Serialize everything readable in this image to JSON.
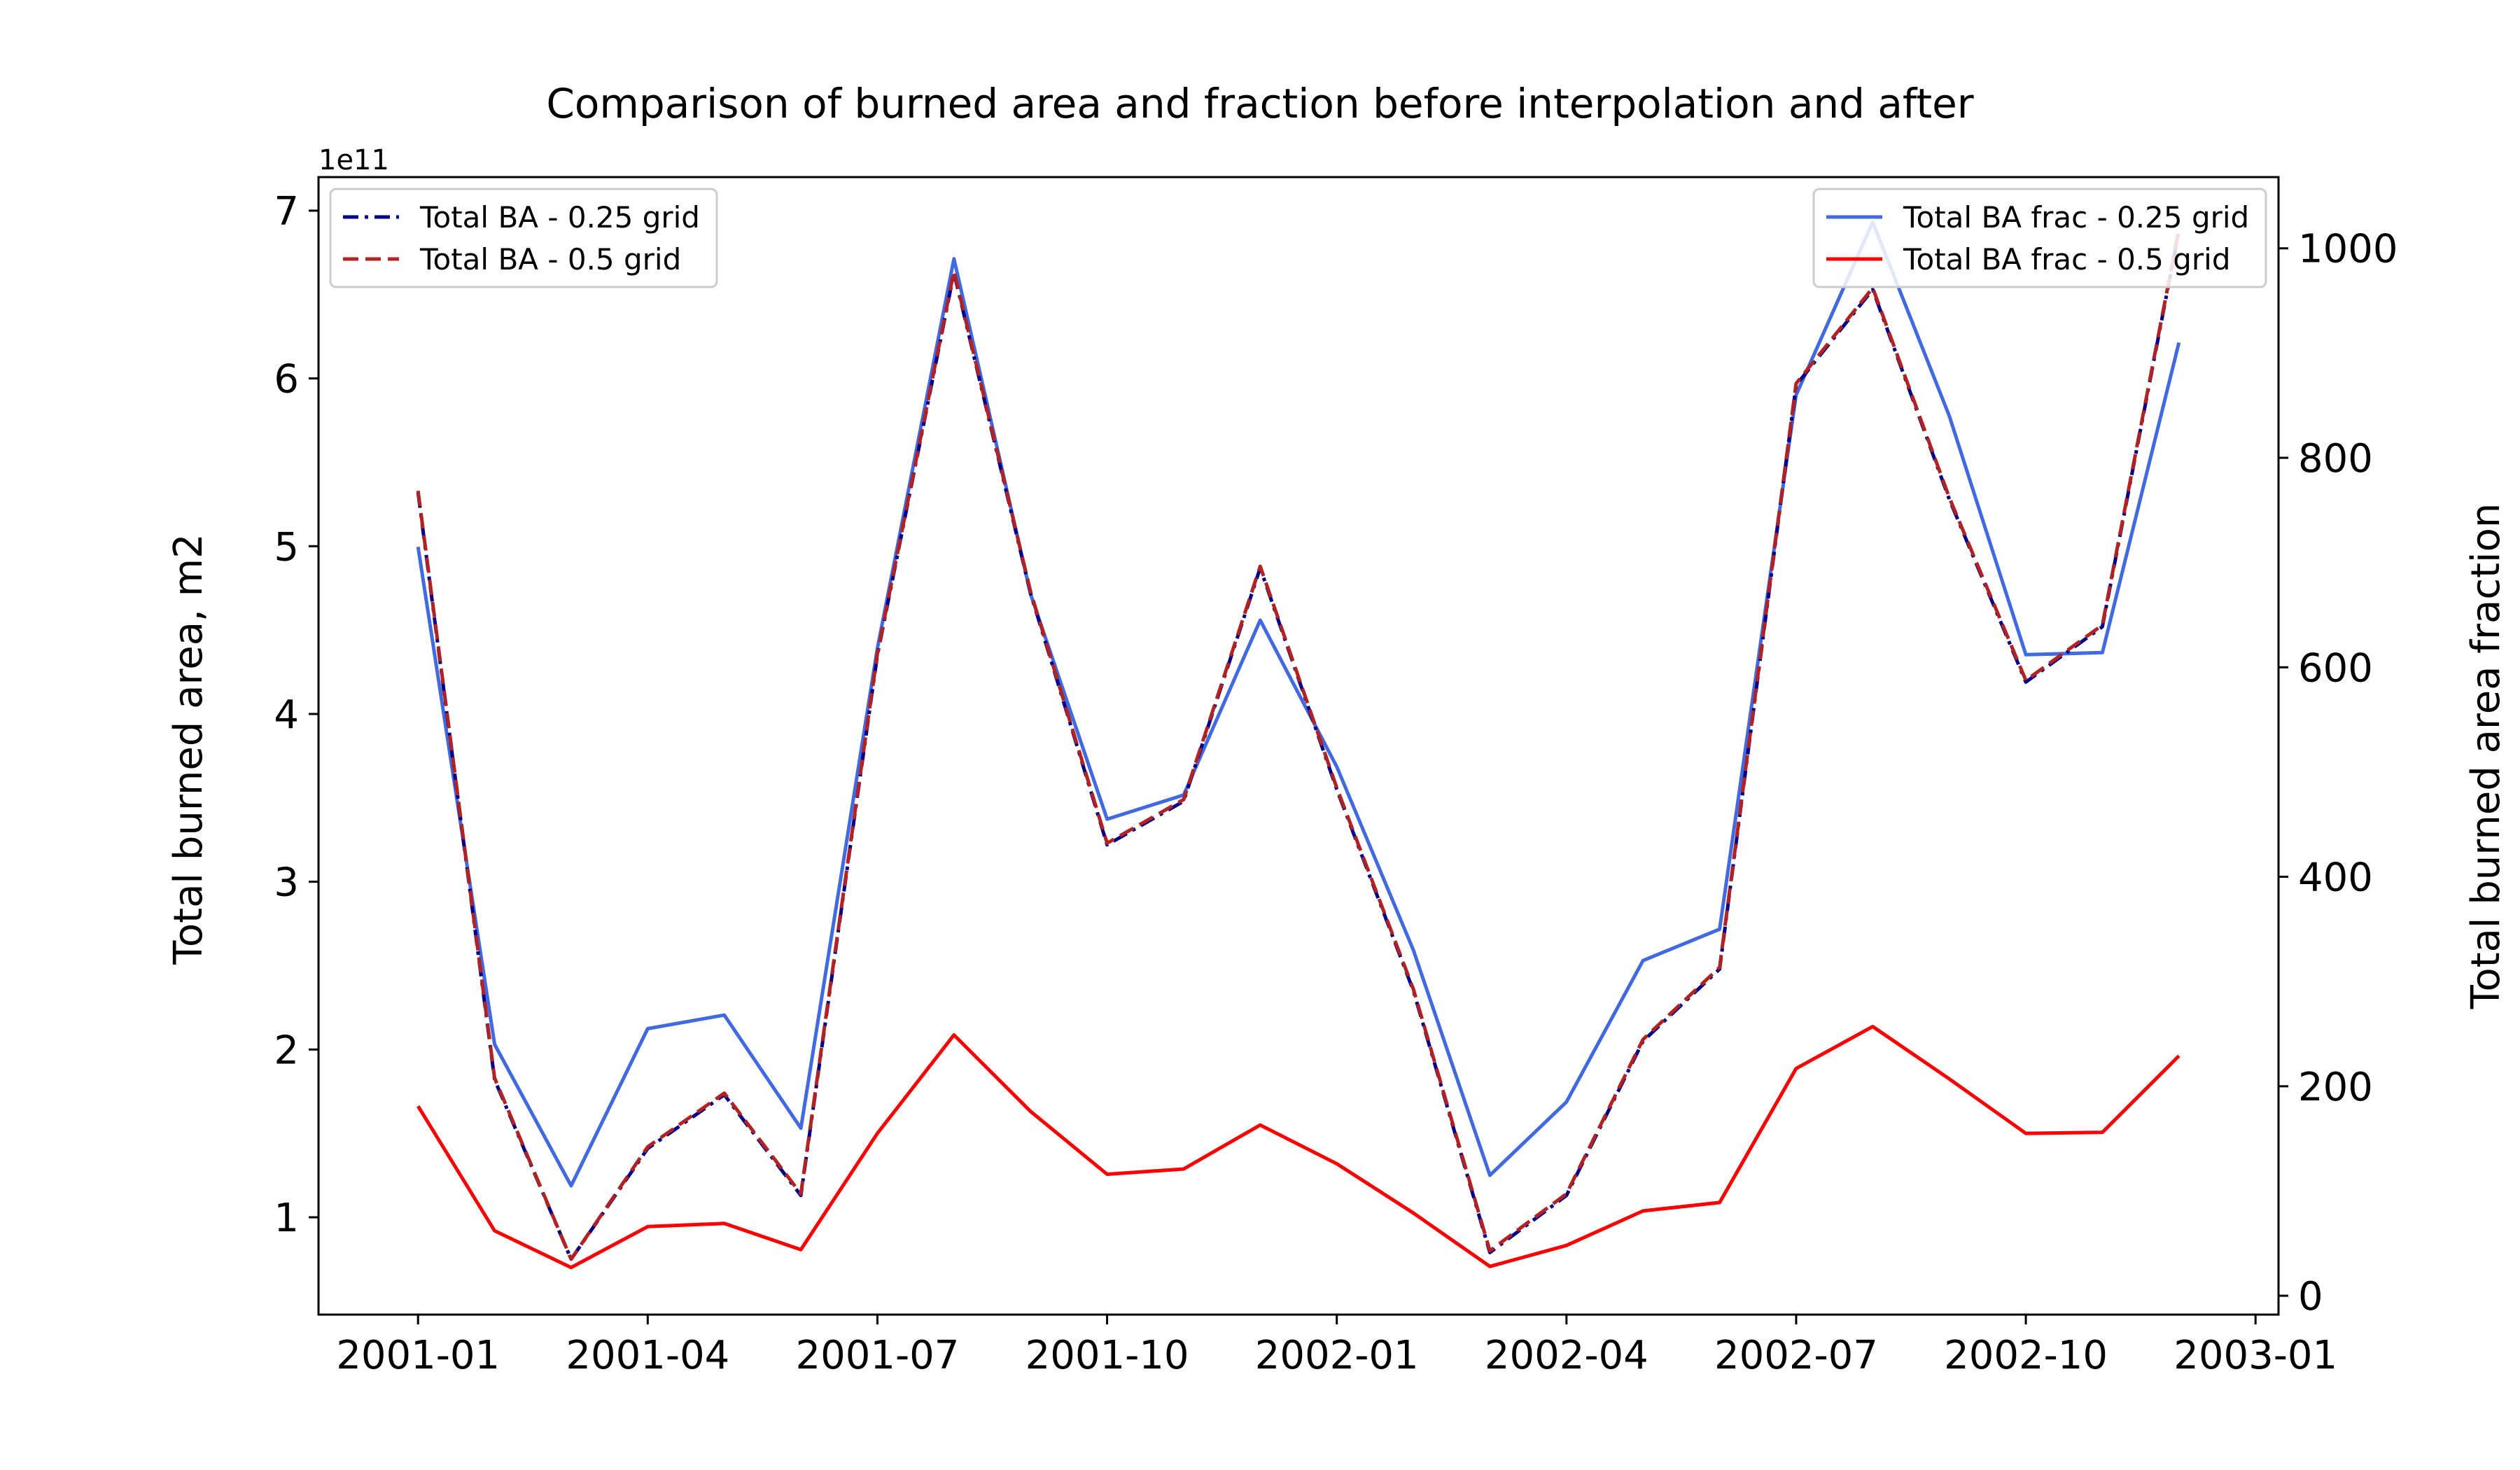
{
  "chart_data": {
    "type": "line",
    "title": "Comparison of burned area and fraction before interpolation and after",
    "x": [
      "2001-01",
      "2001-02",
      "2001-03",
      "2001-04",
      "2001-05",
      "2001-06",
      "2001-07",
      "2001-08",
      "2001-09",
      "2001-10",
      "2001-11",
      "2001-12",
      "2002-01",
      "2002-02",
      "2002-03",
      "2002-04",
      "2002-05",
      "2002-06",
      "2002-07",
      "2002-08",
      "2002-09",
      "2002-10",
      "2002-11",
      "2002-12"
    ],
    "x_ticks": [
      "2001-01",
      "2001-04",
      "2001-07",
      "2001-10",
      "2002-01",
      "2002-04",
      "2002-07",
      "2002-10",
      "2003-01"
    ],
    "left_axis": {
      "label": "Total burned area, m2",
      "offset_text": "1e11",
      "ylim": [
        0.42,
        7.2
      ],
      "ticks": [
        "1",
        "2",
        "3",
        "4",
        "5",
        "6",
        "7"
      ]
    },
    "right_axis": {
      "label": "Total burned area fraction",
      "ylim": [
        -18,
        1068
      ],
      "ticks": [
        "0",
        "200",
        "400",
        "600",
        "800",
        "1000"
      ]
    },
    "series": [
      {
        "name": "Total BA - 0.25 grid",
        "axis": "left",
        "color": "#00008b",
        "style": "dashdot",
        "values": [
          5.32,
          1.82,
          0.75,
          1.41,
          1.73,
          1.13,
          4.35,
          6.63,
          4.72,
          3.22,
          3.48,
          4.87,
          3.55,
          2.35,
          0.79,
          1.13,
          2.05,
          2.48,
          5.96,
          6.53,
          5.28,
          4.19,
          4.52,
          6.88
        ]
      },
      {
        "name": "Total BA - 0.5 grid",
        "axis": "left",
        "color": "#b22222",
        "style": "dashed",
        "values": [
          5.33,
          1.83,
          0.75,
          1.42,
          1.74,
          1.14,
          4.36,
          6.64,
          4.73,
          3.23,
          3.49,
          4.88,
          3.56,
          2.36,
          0.8,
          1.14,
          2.06,
          2.49,
          5.97,
          6.54,
          5.29,
          4.2,
          4.53,
          6.89
        ]
      },
      {
        "name": "Total BA frac - 0.25 grid",
        "axis": "right",
        "color": "#4169e1",
        "style": "solid",
        "values": [
          715,
          240,
          105,
          255,
          268,
          160,
          618,
          990,
          670,
          455,
          478,
          645,
          505,
          330,
          115,
          185,
          320,
          350,
          860,
          1025,
          840,
          612,
          614,
          910
        ]
      },
      {
        "name": "Total BA frac - 0.5 grid",
        "axis": "right",
        "color": "#ff0000",
        "style": "solid",
        "values": [
          181,
          62,
          27,
          66,
          69,
          44,
          155,
          249,
          176,
          116,
          121,
          163,
          126,
          79,
          28,
          48,
          81,
          89,
          217,
          257,
          207,
          155,
          156,
          229
        ]
      }
    ],
    "legend_left": [
      "Total BA - 0.25 grid",
      "Total BA - 0.5 grid"
    ],
    "legend_right": [
      "Total BA frac - 0.25 grid",
      "Total BA frac - 0.5 grid"
    ],
    "grid": false
  }
}
